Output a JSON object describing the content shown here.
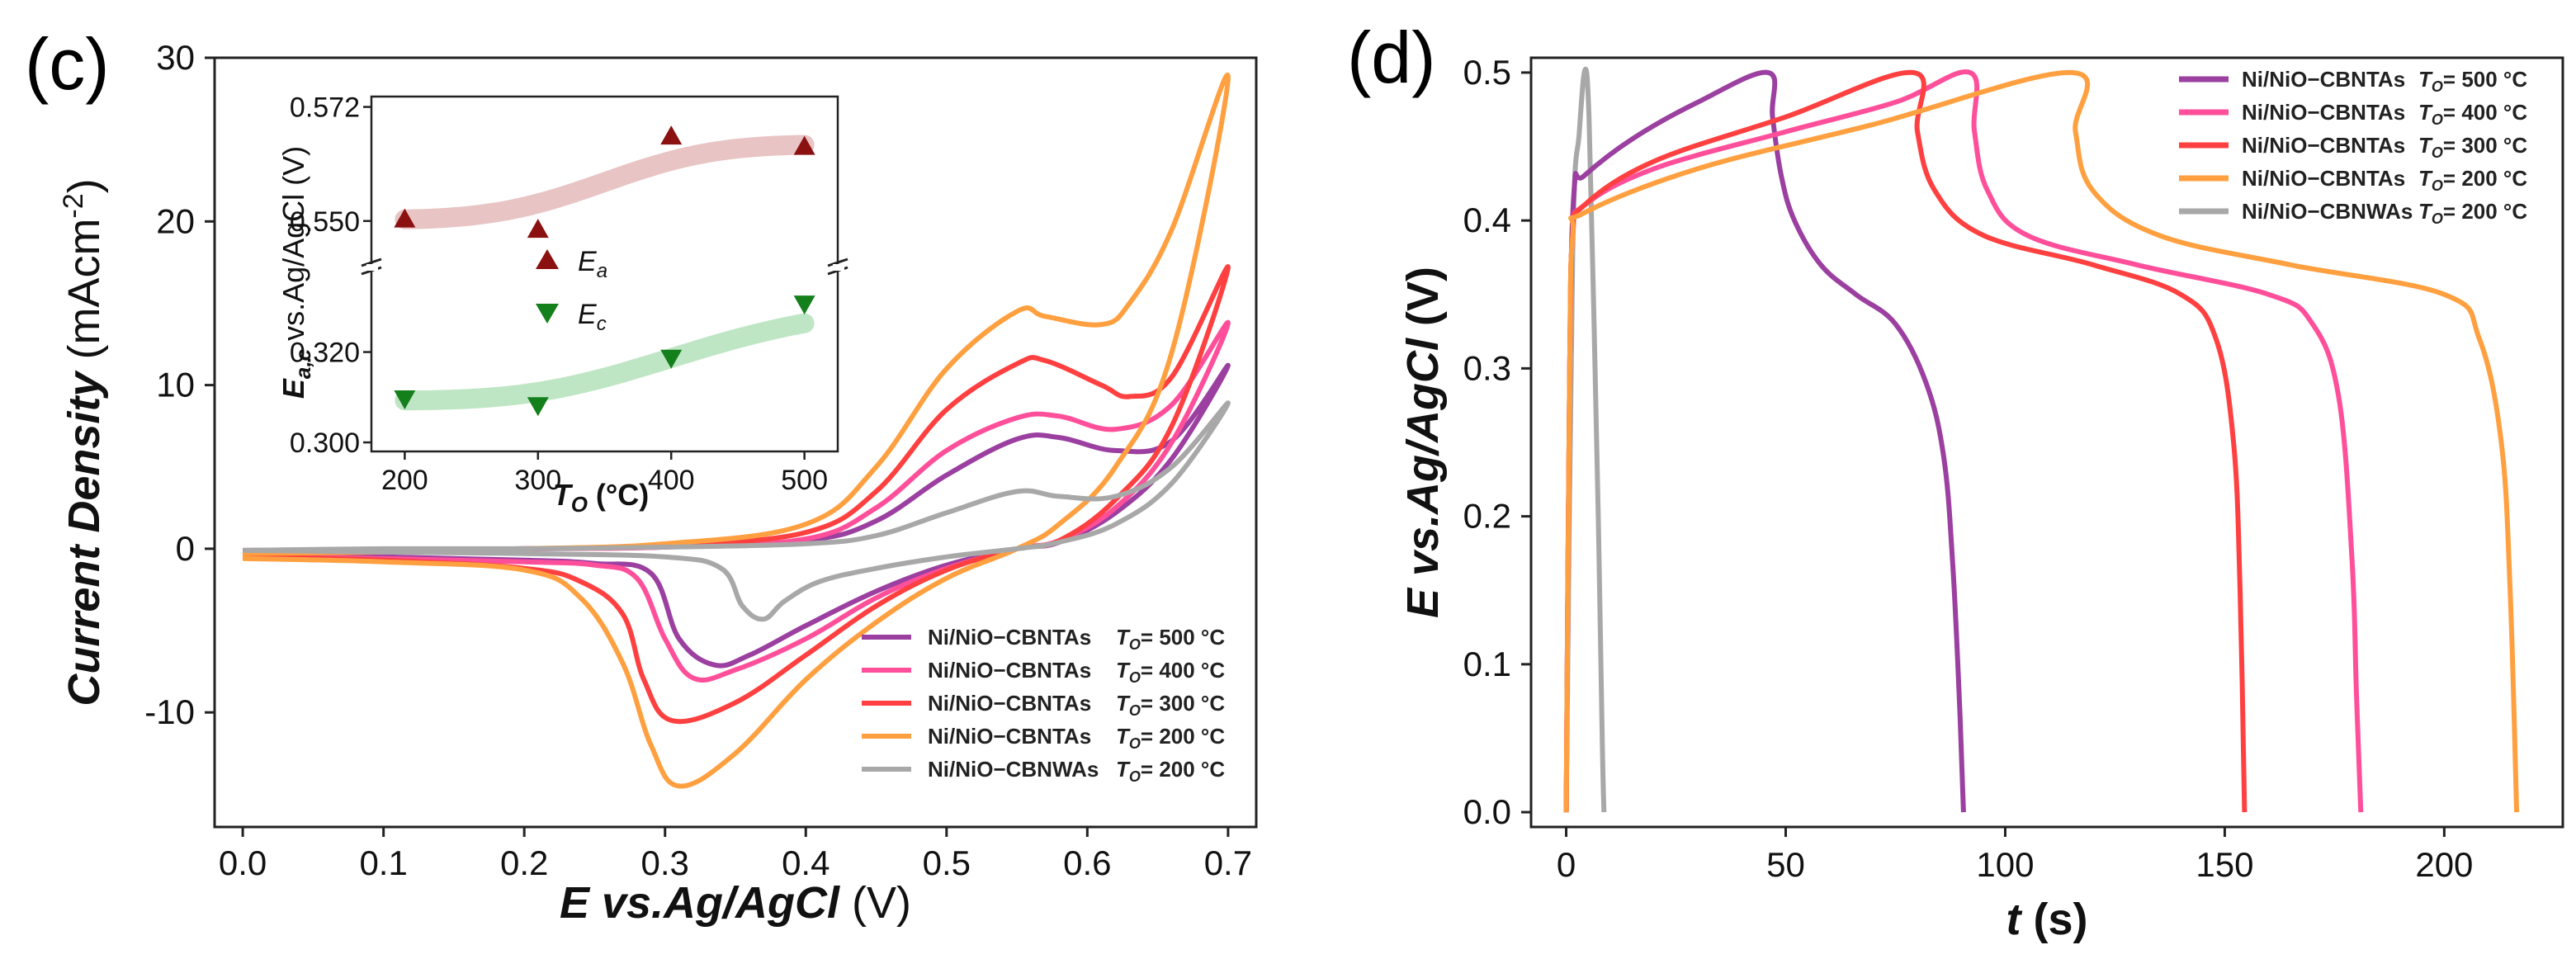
{
  "panel_c_label": "(c)",
  "panel_d_label": "(d)",
  "colors": {
    "T500": "#9b3fa0",
    "T400": "#ff4f9a",
    "T300": "#ff4040",
    "T200": "#ffa040",
    "NWA200": "#a8a8a8",
    "Ea": "#8b1010",
    "Ec": "#14801c",
    "Ea_band": "#e8c4c4",
    "Ec_band": "#bfe6c4"
  },
  "chart_data": [
    {
      "id": "cv",
      "type": "line",
      "title": "",
      "xlabel_italic": "E vs.Ag/AgCl",
      "xlabel_unit": " (V)",
      "ylabel_italic": "Current Density",
      "ylabel_unit": " (mAcm",
      "ylabel_sup": "-2",
      "ylabel_close": ")",
      "xlim": [
        -0.02,
        0.72
      ],
      "ylim": [
        -17,
        30
      ],
      "xticks": [
        "0.0",
        "0.1",
        "0.2",
        "0.3",
        "0.4",
        "0.5",
        "0.6",
        "0.7"
      ],
      "yticks": [
        "-10",
        "0",
        "10",
        "20",
        "30"
      ],
      "legend_position": "bottom-right",
      "series": [
        {
          "key": "T500",
          "name": "Ni/NiO−CBNTAs",
          "temp": "= 500 °C",
          "anodic": [
            [
              0,
              -0.1
            ],
            [
              0.1,
              -0.05
            ],
            [
              0.2,
              0
            ],
            [
              0.3,
              0.1
            ],
            [
              0.4,
              0.5
            ],
            [
              0.45,
              1.7
            ],
            [
              0.5,
              4.5
            ],
            [
              0.55,
              6.7
            ],
            [
              0.58,
              6.8
            ],
            [
              0.62,
              6
            ],
            [
              0.66,
              6.6
            ],
            [
              0.7,
              11.2
            ]
          ],
          "cathodic": [
            [
              0.7,
              11.2
            ],
            [
              0.66,
              5.5
            ],
            [
              0.62,
              2.2
            ],
            [
              0.58,
              0.4
            ],
            [
              0.55,
              0
            ],
            [
              0.5,
              -1
            ],
            [
              0.45,
              -2.6
            ],
            [
              0.4,
              -4.7
            ],
            [
              0.36,
              -6.5
            ],
            [
              0.335,
              -7.1
            ],
            [
              0.31,
              -5.5
            ],
            [
              0.29,
              -1.5
            ],
            [
              0.25,
              -0.9
            ],
            [
              0.2,
              -0.7
            ],
            [
              0.1,
              -0.5
            ],
            [
              0,
              -0.4
            ]
          ]
        },
        {
          "key": "T400",
          "name": "Ni/NiO−CBNTAs",
          "temp": "= 400 °C",
          "anodic": [
            [
              0,
              -0.2
            ],
            [
              0.1,
              -0.1
            ],
            [
              0.2,
              0
            ],
            [
              0.3,
              0.1
            ],
            [
              0.4,
              0.6
            ],
            [
              0.45,
              2.5
            ],
            [
              0.5,
              6
            ],
            [
              0.55,
              8
            ],
            [
              0.58,
              8.1
            ],
            [
              0.62,
              7.3
            ],
            [
              0.66,
              8.8
            ],
            [
              0.7,
              13.8
            ]
          ],
          "cathodic": [
            [
              0.7,
              13.8
            ],
            [
              0.66,
              6.5
            ],
            [
              0.62,
              2.5
            ],
            [
              0.58,
              0.5
            ],
            [
              0.55,
              0
            ],
            [
              0.5,
              -1.2
            ],
            [
              0.45,
              -3
            ],
            [
              0.4,
              -5.5
            ],
            [
              0.35,
              -7.4
            ],
            [
              0.32,
              -7.9
            ],
            [
              0.3,
              -5.5
            ],
            [
              0.28,
              -1.8
            ],
            [
              0.25,
              -1
            ],
            [
              0.2,
              -0.8
            ],
            [
              0.1,
              -0.6
            ],
            [
              0,
              -0.5
            ]
          ]
        },
        {
          "key": "T300",
          "name": "Ni/NiO−CBNTAs",
          "temp": "= 300 °C",
          "anodic": [
            [
              0,
              -0.2
            ],
            [
              0.1,
              -0.1
            ],
            [
              0.2,
              0
            ],
            [
              0.3,
              0.2
            ],
            [
              0.4,
              1
            ],
            [
              0.45,
              3.5
            ],
            [
              0.5,
              8.5
            ],
            [
              0.55,
              11.3
            ],
            [
              0.57,
              11.5
            ],
            [
              0.61,
              10
            ],
            [
              0.63,
              9.3
            ],
            [
              0.66,
              10.5
            ],
            [
              0.7,
              17.2
            ]
          ],
          "cathodic": [
            [
              0.7,
              17.2
            ],
            [
              0.66,
              7.5
            ],
            [
              0.62,
              3
            ],
            [
              0.58,
              0.5
            ],
            [
              0.55,
              0
            ],
            [
              0.5,
              -1.3
            ],
            [
              0.45,
              -3.5
            ],
            [
              0.4,
              -6.5
            ],
            [
              0.35,
              -9.4
            ],
            [
              0.305,
              -10.5
            ],
            [
              0.285,
              -8
            ],
            [
              0.27,
              -4
            ],
            [
              0.24,
              -2
            ],
            [
              0.2,
              -1.2
            ],
            [
              0.1,
              -0.7
            ],
            [
              0,
              -0.5
            ]
          ]
        },
        {
          "key": "T200",
          "name": "Ni/NiO−CBNTAs",
          "temp": "= 200 °C",
          "anodic": [
            [
              0,
              -0.3
            ],
            [
              0.1,
              -0.2
            ],
            [
              0.2,
              0
            ],
            [
              0.3,
              0.3
            ],
            [
              0.4,
              1.5
            ],
            [
              0.45,
              5
            ],
            [
              0.5,
              11
            ],
            [
              0.55,
              14.5
            ],
            [
              0.57,
              14.2
            ],
            [
              0.61,
              13.7
            ],
            [
              0.63,
              15
            ],
            [
              0.66,
              19.5
            ],
            [
              0.7,
              28.8
            ]
          ],
          "cathodic": [
            [
              0.7,
              28.8
            ],
            [
              0.66,
              12
            ],
            [
              0.62,
              5
            ],
            [
              0.58,
              1.5
            ],
            [
              0.55,
              0
            ],
            [
              0.5,
              -1.8
            ],
            [
              0.45,
              -4.5
            ],
            [
              0.4,
              -8
            ],
            [
              0.35,
              -12.5
            ],
            [
              0.31,
              -14.5
            ],
            [
              0.29,
              -12
            ],
            [
              0.27,
              -7
            ],
            [
              0.24,
              -3
            ],
            [
              0.2,
              -1.3
            ],
            [
              0.1,
              -0.8
            ],
            [
              0,
              -0.6
            ]
          ]
        },
        {
          "key": "NWA200",
          "name": "Ni/NiO−CBNWAs",
          "temp": "= 200 °C",
          "anodic": [
            [
              0,
              -0.1
            ],
            [
              0.1,
              0
            ],
            [
              0.2,
              0
            ],
            [
              0.3,
              0.1
            ],
            [
              0.4,
              0.3
            ],
            [
              0.45,
              0.8
            ],
            [
              0.5,
              2.2
            ],
            [
              0.55,
              3.5
            ],
            [
              0.58,
              3.2
            ],
            [
              0.62,
              3.2
            ],
            [
              0.66,
              5
            ],
            [
              0.7,
              8.9
            ]
          ],
          "cathodic": [
            [
              0.7,
              8.9
            ],
            [
              0.66,
              4
            ],
            [
              0.62,
              1.5
            ],
            [
              0.58,
              0.4
            ],
            [
              0.55,
              0
            ],
            [
              0.5,
              -0.5
            ],
            [
              0.45,
              -1.2
            ],
            [
              0.41,
              -2
            ],
            [
              0.385,
              -3.2
            ],
            [
              0.37,
              -4.3
            ],
            [
              0.355,
              -3.5
            ],
            [
              0.34,
              -1.2
            ],
            [
              0.3,
              -0.5
            ],
            [
              0.2,
              -0.3
            ],
            [
              0.1,
              -0.2
            ],
            [
              0,
              -0.1
            ]
          ]
        }
      ]
    },
    {
      "id": "inset",
      "type": "scatter",
      "xlabel": "T",
      "xlabel_sub": "O",
      "xlabel_unit": " (°C)",
      "ylabel": "E",
      "ylabel_sub": "a,c",
      "ylabel_rest": " vs.Ag/AgCl (V)",
      "xlim": [
        175,
        525
      ],
      "xticks": [
        "200",
        "300",
        "400",
        "500"
      ],
      "ylim_upper": [
        0.542,
        0.574
      ],
      "ylim_lower": [
        0.298,
        0.338
      ],
      "yticks_upper": [
        "0.550",
        "0.572"
      ],
      "yticks_lower": [
        "0.300",
        "0.320"
      ],
      "series": [
        {
          "key": "Ea",
          "label": "E",
          "sub": "a",
          "x": [
            200,
            300,
            400,
            500
          ],
          "y": [
            0.5505,
            0.5485,
            0.5665,
            0.5645
          ]
        },
        {
          "key": "Ec",
          "label": "E",
          "sub": "c",
          "x": [
            200,
            300,
            400,
            500
          ],
          "y": [
            0.3095,
            0.308,
            0.3185,
            0.3305
          ]
        }
      ]
    },
    {
      "id": "gcd",
      "type": "line",
      "xlabel_italic": "t",
      "xlabel_unit": " (s)",
      "ylabel_italic": "E vs.Ag/AgCl",
      "ylabel_unit": " (V)",
      "xlim": [
        -8,
        227
      ],
      "ylim": [
        -0.01,
        0.51
      ],
      "xticks": [
        "0",
        "50",
        "100",
        "150",
        "200"
      ],
      "yticks": [
        "0.0",
        "0.1",
        "0.2",
        "0.3",
        "0.4",
        "0.5"
      ],
      "legend_position": "top-right",
      "series": [
        {
          "key": "T500",
          "name": "Ni/NiO−CBNTAs",
          "temp": "= 500 °C",
          "points": [
            [
              0,
              0
            ],
            [
              0.8,
              0.3
            ],
            [
              1.8,
              0.42
            ],
            [
              4,
              0.43
            ],
            [
              15,
              0.455
            ],
            [
              30,
              0.48
            ],
            [
              46,
              0.5
            ],
            [
              47,
              0.47
            ],
            [
              49,
              0.43
            ],
            [
              52,
              0.4
            ],
            [
              58,
              0.37
            ],
            [
              66,
              0.35
            ],
            [
              75,
              0.33
            ],
            [
              82,
              0.29
            ],
            [
              86,
              0.24
            ],
            [
              88,
              0.17
            ],
            [
              89.5,
              0.08
            ],
            [
              90.5,
              0
            ]
          ]
        },
        {
          "key": "T400",
          "name": "Ni/NiO−CBNTAs",
          "temp": "= 400 °C",
          "points": [
            [
              0,
              0
            ],
            [
              0.8,
              0.3
            ],
            [
              1.5,
              0.39
            ],
            [
              4,
              0.41
            ],
            [
              20,
              0.435
            ],
            [
              50,
              0.46
            ],
            [
              75,
              0.48
            ],
            [
              92,
              0.5
            ],
            [
              93,
              0.46
            ],
            [
              96,
              0.42
            ],
            [
              105,
              0.39
            ],
            [
              130,
              0.37
            ],
            [
              160,
              0.35
            ],
            [
              170,
              0.33
            ],
            [
              176,
              0.28
            ],
            [
              179,
              0.17
            ],
            [
              180,
              0.08
            ],
            [
              181,
              0
            ]
          ]
        },
        {
          "key": "T300",
          "name": "Ni/NiO−CBNTAs",
          "temp": "= 300 °C",
          "points": [
            [
              0,
              0
            ],
            [
              0.8,
              0.3
            ],
            [
              1.5,
              0.39
            ],
            [
              4,
              0.41
            ],
            [
              20,
              0.44
            ],
            [
              50,
              0.47
            ],
            [
              79,
              0.5
            ],
            [
              80,
              0.46
            ],
            [
              84,
              0.42
            ],
            [
              95,
              0.39
            ],
            [
              120,
              0.37
            ],
            [
              140,
              0.35
            ],
            [
              148,
              0.32
            ],
            [
              152,
              0.25
            ],
            [
              153.5,
              0.15
            ],
            [
              154.5,
              0
            ]
          ]
        },
        {
          "key": "T200",
          "name": "Ni/NiO−CBNTAs",
          "temp": "= 200 °C",
          "points": [
            [
              0,
              0
            ],
            [
              0.8,
              0.3
            ],
            [
              1.5,
              0.39
            ],
            [
              4,
              0.405
            ],
            [
              30,
              0.435
            ],
            [
              70,
              0.465
            ],
            [
              115,
              0.5
            ],
            [
              116,
              0.46
            ],
            [
              120,
              0.42
            ],
            [
              135,
              0.39
            ],
            [
              165,
              0.37
            ],
            [
              200,
              0.35
            ],
            [
              208,
              0.32
            ],
            [
              213,
              0.25
            ],
            [
              215,
              0.15
            ],
            [
              216.5,
              0
            ]
          ]
        },
        {
          "key": "NWA200",
          "name": "Ni/NiO−CBNWAs",
          "temp": "= 200 °C",
          "points": [
            [
              0,
              0
            ],
            [
              1.5,
              0.38
            ],
            [
              3,
              0.46
            ],
            [
              4.3,
              0.502
            ],
            [
              5.2,
              0.47
            ],
            [
              6.2,
              0.35
            ],
            [
              7.3,
              0.2
            ],
            [
              8.2,
              0.05
            ],
            [
              8.6,
              0
            ]
          ]
        }
      ]
    }
  ]
}
